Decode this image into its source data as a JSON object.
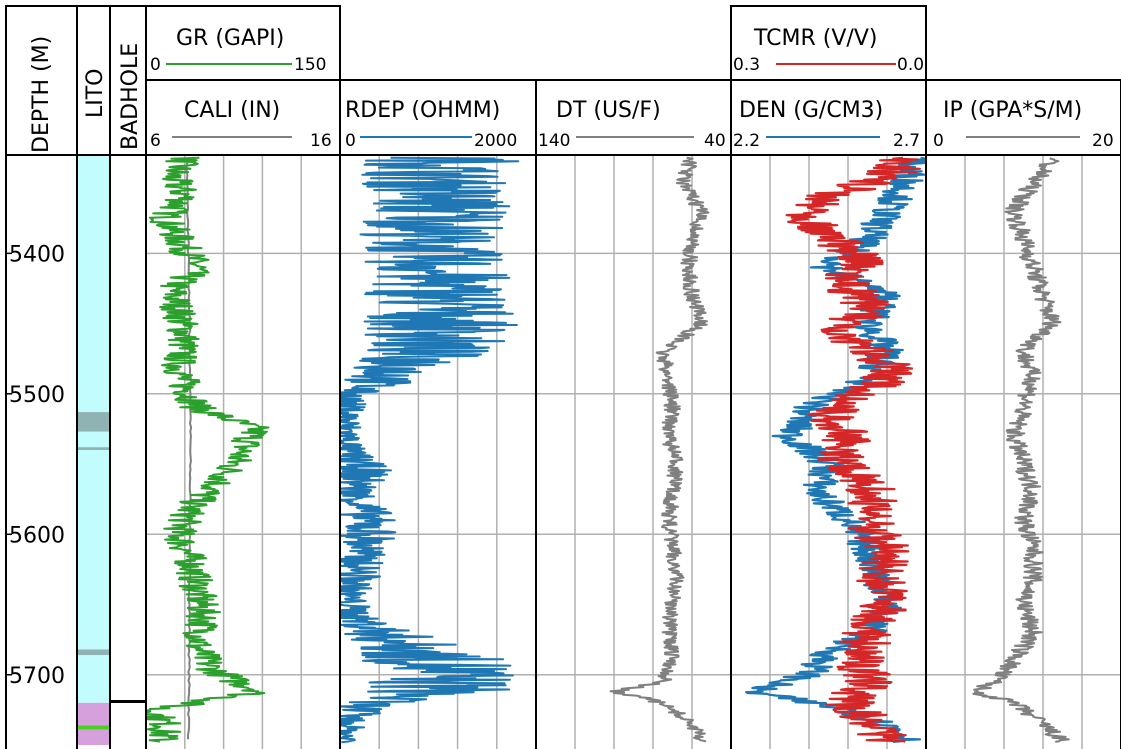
{
  "colors": {
    "gr": "#2ca02c",
    "rdep": "#1f77b4",
    "den": "#1f77b4",
    "tcmr": "#d62728",
    "cali": "#808080",
    "dt": "#808080",
    "ip": "#808080",
    "lito_sand": "#c2fcfc",
    "lito_shale": "#8fb3b2",
    "lito_carb": "#d6a0dc",
    "lito_green": "#47d11a"
  },
  "chart_data": {
    "type": "line",
    "depth_range": [
      5330,
      5750
    ],
    "depth_ticks": [
      "5400",
      "5500",
      "5600",
      "5700"
    ],
    "depth_label": "DEPTH (M)",
    "lito_label": "LITO",
    "badhole_label": "BADHOLE",
    "tracks": [
      {
        "id": "gr",
        "label": "GR (GAPI)",
        "min": "0",
        "max": "150",
        "range": [
          0,
          150
        ]
      },
      {
        "id": "cali",
        "label": "CALI (IN)",
        "min": "6",
        "max": "16",
        "range": [
          6,
          16
        ]
      },
      {
        "id": "rdep",
        "label": "RDEP (OHMM)",
        "min": "0",
        "max": "2000",
        "range": [
          0,
          2000
        ]
      },
      {
        "id": "dt",
        "label": "DT (US/F)",
        "min": "140",
        "max": "40",
        "range": [
          140,
          40
        ]
      },
      {
        "id": "tcmr",
        "label": "TCMR (V/V)",
        "min": "0.3",
        "max": "0.0",
        "range": [
          0.3,
          0.0
        ]
      },
      {
        "id": "den",
        "label": "DEN (G/CM3)",
        "min": "2.2",
        "max": "2.7",
        "range": [
          2.2,
          2.7
        ]
      },
      {
        "id": "ip",
        "label": "IP (GPA*S/M)",
        "min": "0",
        "max": "20",
        "range": [
          0,
          20
        ]
      }
    ],
    "series": {
      "gr": [
        [
          5332,
          30
        ],
        [
          5345,
          20
        ],
        [
          5360,
          30
        ],
        [
          5375,
          15
        ],
        [
          5390,
          25
        ],
        [
          5410,
          40
        ],
        [
          5425,
          20
        ],
        [
          5440,
          25
        ],
        [
          5460,
          30
        ],
        [
          5480,
          25
        ],
        [
          5495,
          30
        ],
        [
          5510,
          40
        ],
        [
          5520,
          70
        ],
        [
          5525,
          85
        ],
        [
          5540,
          75
        ],
        [
          5560,
          60
        ],
        [
          5580,
          35
        ],
        [
          5600,
          25
        ],
        [
          5620,
          35
        ],
        [
          5640,
          40
        ],
        [
          5660,
          45
        ],
        [
          5680,
          40
        ],
        [
          5695,
          50
        ],
        [
          5705,
          70
        ],
        [
          5712,
          90
        ],
        [
          5718,
          50
        ],
        [
          5725,
          5
        ],
        [
          5735,
          15
        ],
        [
          5748,
          12
        ]
      ],
      "cali": [
        [
          5332,
          8.1
        ],
        [
          5500,
          8.3
        ],
        [
          5748,
          8.2
        ]
      ],
      "rdep": [
        [
          5332,
          1100
        ],
        [
          5345,
          950
        ],
        [
          5360,
          1000
        ],
        [
          5375,
          1050
        ],
        [
          5390,
          900
        ],
        [
          5405,
          950
        ],
        [
          5420,
          1000
        ],
        [
          5440,
          1050
        ],
        [
          5460,
          1000
        ],
        [
          5480,
          700
        ],
        [
          5493,
          350
        ],
        [
          5500,
          100
        ],
        [
          5520,
          60
        ],
        [
          5540,
          80
        ],
        [
          5555,
          250
        ],
        [
          5570,
          150
        ],
        [
          5585,
          250
        ],
        [
          5600,
          300
        ],
        [
          5615,
          200
        ],
        [
          5630,
          180
        ],
        [
          5645,
          80
        ],
        [
          5660,
          160
        ],
        [
          5680,
          700
        ],
        [
          5695,
          1100
        ],
        [
          5712,
          1000
        ],
        [
          5720,
          300
        ],
        [
          5733,
          80
        ],
        [
          5748,
          60
        ]
      ],
      "dt": [
        [
          5332,
          60
        ],
        [
          5350,
          65
        ],
        [
          5370,
          55
        ],
        [
          5390,
          60
        ],
        [
          5410,
          62
        ],
        [
          5430,
          60
        ],
        [
          5450,
          55
        ],
        [
          5470,
          75
        ],
        [
          5490,
          72
        ],
        [
          5510,
          70
        ],
        [
          5530,
          72
        ],
        [
          5550,
          68
        ],
        [
          5570,
          70
        ],
        [
          5590,
          72
        ],
        [
          5610,
          70
        ],
        [
          5630,
          68
        ],
        [
          5650,
          70
        ],
        [
          5670,
          72
        ],
        [
          5690,
          70
        ],
        [
          5705,
          75
        ],
        [
          5712,
          100
        ],
        [
          5718,
          80
        ],
        [
          5725,
          70
        ],
        [
          5735,
          60
        ],
        [
          5748,
          55
        ]
      ],
      "tcmr": [
        [
          5332,
          0.03
        ],
        [
          5345,
          0.06
        ],
        [
          5360,
          0.15
        ],
        [
          5375,
          0.18
        ],
        [
          5390,
          0.14
        ],
        [
          5405,
          0.1
        ],
        [
          5420,
          0.13
        ],
        [
          5440,
          0.08
        ],
        [
          5455,
          0.16
        ],
        [
          5470,
          0.08
        ],
        [
          5485,
          0.05
        ],
        [
          5500,
          0.1
        ],
        [
          5515,
          0.15
        ],
        [
          5530,
          0.12
        ],
        [
          5550,
          0.13
        ],
        [
          5570,
          0.08
        ],
        [
          5590,
          0.09
        ],
        [
          5610,
          0.06
        ],
        [
          5630,
          0.07
        ],
        [
          5650,
          0.06
        ],
        [
          5670,
          0.09
        ],
        [
          5690,
          0.1
        ],
        [
          5705,
          0.09
        ],
        [
          5720,
          0.12
        ],
        [
          5735,
          0.08
        ],
        [
          5748,
          0.06
        ]
      ],
      "den": [
        [
          5332,
          2.67
        ],
        [
          5350,
          2.65
        ],
        [
          5370,
          2.6
        ],
        [
          5390,
          2.55
        ],
        [
          5410,
          2.45
        ],
        [
          5430,
          2.6
        ],
        [
          5450,
          2.55
        ],
        [
          5470,
          2.6
        ],
        [
          5490,
          2.55
        ],
        [
          5510,
          2.4
        ],
        [
          5530,
          2.35
        ],
        [
          5550,
          2.45
        ],
        [
          5570,
          2.42
        ],
        [
          5590,
          2.5
        ],
        [
          5610,
          2.55
        ],
        [
          5630,
          2.58
        ],
        [
          5650,
          2.6
        ],
        [
          5670,
          2.55
        ],
        [
          5685,
          2.45
        ],
        [
          5700,
          2.4
        ],
        [
          5712,
          2.25
        ],
        [
          5725,
          2.5
        ],
        [
          5738,
          2.62
        ],
        [
          5748,
          2.66
        ]
      ],
      "ip": [
        [
          5332,
          13
        ],
        [
          5350,
          11
        ],
        [
          5370,
          9
        ],
        [
          5390,
          10
        ],
        [
          5410,
          11
        ],
        [
          5430,
          12
        ],
        [
          5450,
          13
        ],
        [
          5470,
          10
        ],
        [
          5490,
          11
        ],
        [
          5510,
          10
        ],
        [
          5530,
          9
        ],
        [
          5550,
          10
        ],
        [
          5570,
          11
        ],
        [
          5590,
          10
        ],
        [
          5610,
          11
        ],
        [
          5630,
          11
        ],
        [
          5650,
          10
        ],
        [
          5670,
          11
        ],
        [
          5690,
          9
        ],
        [
          5705,
          7
        ],
        [
          5712,
          5
        ],
        [
          5720,
          9
        ],
        [
          5735,
          12
        ],
        [
          5748,
          14
        ]
      ]
    },
    "lito_intervals": [
      {
        "top": 5330,
        "base": 5513,
        "class": "lito_sand"
      },
      {
        "top": 5513,
        "base": 5527,
        "class": "lito_shale"
      },
      {
        "top": 5527,
        "base": 5538,
        "class": "lito_sand"
      },
      {
        "top": 5538,
        "base": 5540,
        "class": "lito_shale"
      },
      {
        "top": 5540,
        "base": 5682,
        "class": "lito_sand"
      },
      {
        "top": 5682,
        "base": 5686,
        "class": "lito_shale"
      },
      {
        "top": 5686,
        "base": 5720,
        "class": "lito_sand"
      },
      {
        "top": 5720,
        "base": 5736,
        "class": "lito_carb"
      },
      {
        "top": 5736,
        "base": 5739,
        "class": "lito_green"
      },
      {
        "top": 5739,
        "base": 5750,
        "class": "lito_carb"
      }
    ],
    "badhole": [
      5719
    ]
  }
}
